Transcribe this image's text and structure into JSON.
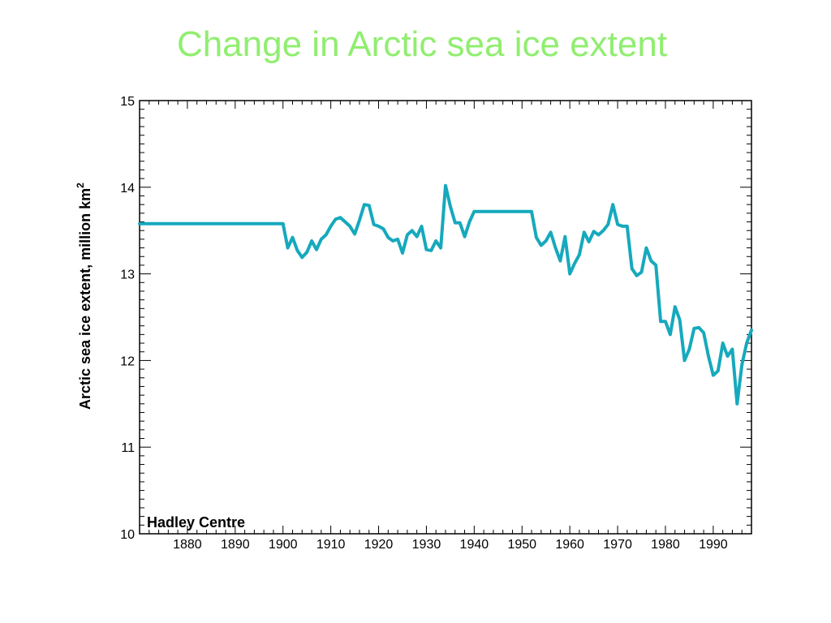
{
  "chart_data": {
    "type": "line",
    "title": "Change in Arctic sea ice extent",
    "xlabel": "",
    "ylabel": "Arctic sea ice extent, million km",
    "ylabel_superscript": "2",
    "credit": "Hadley Centre",
    "xlim": [
      1870,
      1998
    ],
    "ylim": [
      10,
      15
    ],
    "x_ticks": [
      1880,
      1890,
      1900,
      1910,
      1920,
      1930,
      1940,
      1950,
      1960,
      1970,
      1980,
      1990
    ],
    "y_ticks": [
      10,
      11,
      12,
      13,
      14,
      15
    ],
    "grid": false,
    "line_color": "#16a9bd",
    "series": [
      {
        "x": [
          1870,
          1900,
          1901,
          1902,
          1903,
          1904,
          1905,
          1906,
          1907,
          1908,
          1909,
          1910,
          1911,
          1912,
          1913,
          1914,
          1915,
          1916,
          1917,
          1918,
          1919,
          1920,
          1921,
          1922,
          1923,
          1924,
          1925,
          1926,
          1927,
          1928,
          1929,
          1930,
          1931,
          1932,
          1933,
          1934,
          1935,
          1936,
          1937,
          1938,
          1939,
          1940,
          1941,
          1952,
          1953,
          1954,
          1955,
          1956,
          1957,
          1958,
          1959,
          1960,
          1961,
          1962,
          1963,
          1964,
          1965,
          1966,
          1967,
          1968,
          1969,
          1970,
          1971,
          1972,
          1973,
          1974,
          1975,
          1976,
          1977,
          1978,
          1979,
          1980,
          1981,
          1982,
          1983,
          1984,
          1985,
          1986,
          1987,
          1988,
          1989,
          1990,
          1991,
          1992,
          1993,
          1994,
          1995,
          1996,
          1997,
          1998
        ],
        "y": [
          13.58,
          13.58,
          13.3,
          13.42,
          13.27,
          13.19,
          13.25,
          13.38,
          13.28,
          13.4,
          13.45,
          13.55,
          13.63,
          13.65,
          13.6,
          13.55,
          13.46,
          13.62,
          13.8,
          13.79,
          13.57,
          13.55,
          13.52,
          13.42,
          13.38,
          13.4,
          13.24,
          13.45,
          13.5,
          13.43,
          13.55,
          13.28,
          13.27,
          13.38,
          13.3,
          14.02,
          13.78,
          13.59,
          13.59,
          13.43,
          13.6,
          13.72,
          13.72,
          13.72,
          13.42,
          13.33,
          13.38,
          13.48,
          13.3,
          13.15,
          13.43,
          13.0,
          13.12,
          13.22,
          13.48,
          13.37,
          13.49,
          13.45,
          13.5,
          13.57,
          13.8,
          13.57,
          13.55,
          13.55,
          13.06,
          12.98,
          13.02,
          13.3,
          13.15,
          13.1,
          12.45,
          12.45,
          12.3,
          12.62,
          12.47,
          12.0,
          12.13,
          12.37,
          12.38,
          12.32,
          12.05,
          11.83,
          11.88,
          12.2,
          12.05,
          12.13,
          11.5,
          11.95,
          12.2,
          12.35
        ]
      }
    ]
  }
}
